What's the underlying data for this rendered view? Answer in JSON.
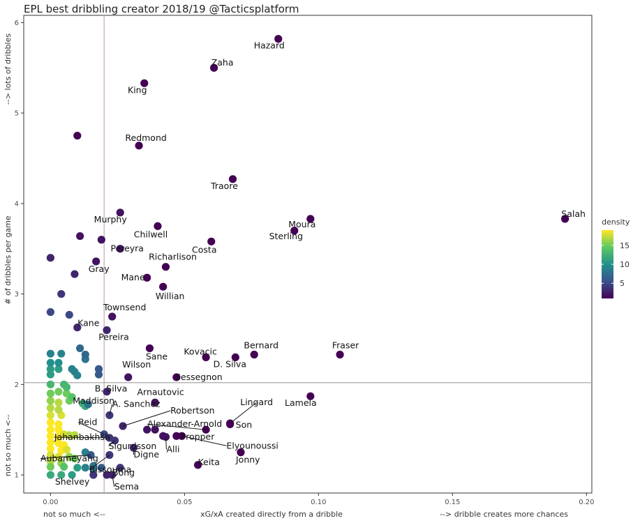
{
  "chart_data": {
    "type": "scatter",
    "title": "EPL best dribbling creator 2018/19 @Tacticsplatform",
    "xlabel_left": "not so much <--",
    "xlabel_center": "xG/xA created directly from a dribble",
    "xlabel_right": "--> dribble creates more chances",
    "ylabel_bottom": "not so much <--",
    "ylabel_center": "# of dribbles per game",
    "ylabel_top": "--> lots of dribbles",
    "xlim": [
      -0.01,
      0.202
    ],
    "ylim": [
      0.8,
      6.08
    ],
    "x_ticks": [
      0.0,
      0.05,
      0.1,
      0.15,
      0.2
    ],
    "x_tick_labels": [
      "0.00",
      "0.05",
      "0.10",
      "0.15",
      "0.20"
    ],
    "y_ticks": [
      1,
      2,
      3,
      4,
      5,
      6
    ],
    "y_tick_labels": [
      "1",
      "2",
      "3",
      "4",
      "5",
      "6"
    ],
    "reference_lines": {
      "x": 0.02,
      "y": 2.02
    },
    "grid": false,
    "legend": {
      "title": "density",
      "placement": "right",
      "ticks": [
        5,
        10,
        15
      ],
      "tick_labels": [
        "5",
        "10",
        "15"
      ],
      "range": [
        1,
        19
      ]
    },
    "colorscale": [
      "#440154",
      "#3b528b",
      "#21908d",
      "#5dc863",
      "#fde725"
    ],
    "labeled_points": [
      {
        "name": "Hazard",
        "x": 0.085,
        "y": 5.82,
        "density": 1
      },
      {
        "name": "Zaha",
        "x": 0.061,
        "y": 5.5,
        "density": 1
      },
      {
        "name": "King",
        "x": 0.035,
        "y": 5.33,
        "density": 1
      },
      {
        "name": "Redmond",
        "x": 0.033,
        "y": 4.64,
        "density": 1
      },
      {
        "name": "Traore",
        "x": 0.068,
        "y": 4.27,
        "density": 1
      },
      {
        "name": "Salah",
        "x": 0.192,
        "y": 3.83,
        "density": 1
      },
      {
        "name": "Moura",
        "x": 0.097,
        "y": 3.83,
        "density": 1
      },
      {
        "name": "Sterling",
        "x": 0.091,
        "y": 3.7,
        "density": 1
      },
      {
        "name": "Murphy",
        "x": 0.026,
        "y": 3.9,
        "density": 2
      },
      {
        "name": "Chilwell",
        "x": 0.04,
        "y": 3.75,
        "density": 1
      },
      {
        "name": "Pereyra",
        "x": 0.026,
        "y": 3.5,
        "density": 2
      },
      {
        "name": "Costa",
        "x": 0.06,
        "y": 3.58,
        "density": 1
      },
      {
        "name": "Richarlison",
        "x": 0.043,
        "y": 3.3,
        "density": 1
      },
      {
        "name": "Gray",
        "x": 0.017,
        "y": 3.36,
        "density": 2
      },
      {
        "name": "Mane",
        "x": 0.036,
        "y": 3.18,
        "density": 1
      },
      {
        "name": "Willian",
        "x": 0.042,
        "y": 3.08,
        "density": 1
      },
      {
        "name": "Townsend",
        "x": 0.023,
        "y": 2.75,
        "density": 2
      },
      {
        "name": "Kane",
        "x": 0.01,
        "y": 2.63,
        "density": 3
      },
      {
        "name": "Pereira",
        "x": 0.021,
        "y": 2.6,
        "density": 3
      },
      {
        "name": "Sane",
        "x": 0.037,
        "y": 2.4,
        "density": 1
      },
      {
        "name": "Kovacic",
        "x": 0.058,
        "y": 2.3,
        "density": 1
      },
      {
        "name": "Bernard",
        "x": 0.076,
        "y": 2.33,
        "density": 1
      },
      {
        "name": "D. Silva",
        "x": 0.069,
        "y": 2.3,
        "density": 1
      },
      {
        "name": "Fraser",
        "x": 0.108,
        "y": 2.33,
        "density": 1
      },
      {
        "name": "Wilson",
        "x": 0.029,
        "y": 2.08,
        "density": 2
      },
      {
        "name": "Sessegnon",
        "x": 0.047,
        "y": 2.08,
        "density": 1
      },
      {
        "name": "B. Silva",
        "x": 0.021,
        "y": 1.92,
        "density": 3
      },
      {
        "name": "Lamela",
        "x": 0.097,
        "y": 1.87,
        "density": 1
      },
      {
        "name": "Maddison",
        "x": 0.014,
        "y": 1.78,
        "density": 8
      },
      {
        "name": "Arnautovic",
        "x": 0.039,
        "y": 1.8,
        "density": 2
      },
      {
        "name": "Robertson",
        "x": 0.027,
        "y": 1.54,
        "density": 3
      },
      {
        "name": "A. Sanchez",
        "x": 0.022,
        "y": 1.66,
        "density": 4
      },
      {
        "name": "Lingard",
        "x": 0.067,
        "y": 1.57,
        "density": 1
      },
      {
        "name": "Reid",
        "x": 0.02,
        "y": 1.45,
        "density": 5
      },
      {
        "name": "Alexander-Arnold",
        "x": 0.058,
        "y": 1.5,
        "density": 1
      },
      {
        "name": "Son",
        "x": 0.067,
        "y": 1.56,
        "density": 1
      },
      {
        "name": "Jahanbakhsh",
        "x": 0.022,
        "y": 1.41,
        "density": 4
      },
      {
        "name": "Propper",
        "x": 0.047,
        "y": 1.43,
        "density": 1
      },
      {
        "name": "Sigurdsson",
        "x": 0.024,
        "y": 1.38,
        "density": 4
      },
      {
        "name": "Elyounoussi",
        "x": 0.049,
        "y": 1.43,
        "density": 1
      },
      {
        "name": "Aubameyang",
        "x": 0.015,
        "y": 1.22,
        "density": 6
      },
      {
        "name": "Digne",
        "x": 0.031,
        "y": 1.3,
        "density": 3
      },
      {
        "name": "Alli",
        "x": 0.043,
        "y": 1.42,
        "density": 2
      },
      {
        "name": "Bissouma",
        "x": 0.022,
        "y": 1.22,
        "density": 4
      },
      {
        "name": "Keita",
        "x": 0.055,
        "y": 1.11,
        "density": 1
      },
      {
        "name": "Jonny",
        "x": 0.071,
        "y": 1.25,
        "density": 1
      },
      {
        "name": "Bong",
        "x": 0.021,
        "y": 1.0,
        "density": 3
      },
      {
        "name": "Shelvey",
        "x": 0.016,
        "y": 1.0,
        "density": 4
      },
      {
        "name": "Sema",
        "x": 0.023,
        "y": 1.0,
        "density": 3
      }
    ],
    "other_points": [
      {
        "x": 0.01,
        "y": 4.75,
        "density": 1
      },
      {
        "x": 0.011,
        "y": 3.64,
        "density": 2
      },
      {
        "x": 0.019,
        "y": 3.6,
        "density": 2
      },
      {
        "x": 0.0,
        "y": 3.4,
        "density": 3
      },
      {
        "x": 0.009,
        "y": 3.22,
        "density": 3
      },
      {
        "x": 0.004,
        "y": 3.0,
        "density": 4
      },
      {
        "x": 0.0,
        "y": 2.8,
        "density": 5
      },
      {
        "x": 0.007,
        "y": 2.77,
        "density": 5
      },
      {
        "x": 0.0,
        "y": 2.34,
        "density": 9
      },
      {
        "x": 0.004,
        "y": 2.34,
        "density": 9
      },
      {
        "x": 0.0,
        "y": 2.24,
        "density": 10
      },
      {
        "x": 0.003,
        "y": 2.24,
        "density": 10
      },
      {
        "x": 0.0,
        "y": 2.17,
        "density": 11
      },
      {
        "x": 0.003,
        "y": 2.17,
        "density": 11
      },
      {
        "x": 0.0,
        "y": 2.11,
        "density": 11
      },
      {
        "x": 0.011,
        "y": 2.4,
        "density": 7
      },
      {
        "x": 0.013,
        "y": 2.33,
        "density": 7
      },
      {
        "x": 0.013,
        "y": 2.28,
        "density": 8
      },
      {
        "x": 0.008,
        "y": 2.17,
        "density": 9
      },
      {
        "x": 0.009,
        "y": 2.14,
        "density": 9
      },
      {
        "x": 0.01,
        "y": 2.1,
        "density": 9
      },
      {
        "x": 0.018,
        "y": 2.17,
        "density": 6
      },
      {
        "x": 0.018,
        "y": 2.11,
        "density": 6
      },
      {
        "x": 0.0,
        "y": 2.0,
        "density": 13
      },
      {
        "x": 0.005,
        "y": 2.0,
        "density": 13
      },
      {
        "x": 0.006,
        "y": 1.97,
        "density": 13
      },
      {
        "x": 0.0,
        "y": 1.9,
        "density": 15
      },
      {
        "x": 0.003,
        "y": 1.92,
        "density": 15
      },
      {
        "x": 0.006,
        "y": 1.9,
        "density": 15
      },
      {
        "x": 0.008,
        "y": 1.86,
        "density": 14
      },
      {
        "x": 0.0,
        "y": 1.82,
        "density": 16
      },
      {
        "x": 0.003,
        "y": 1.8,
        "density": 17
      },
      {
        "x": 0.007,
        "y": 1.82,
        "density": 15
      },
      {
        "x": 0.0,
        "y": 1.74,
        "density": 17
      },
      {
        "x": 0.003,
        "y": 1.72,
        "density": 17
      },
      {
        "x": 0.012,
        "y": 1.79,
        "density": 12
      },
      {
        "x": 0.013,
        "y": 1.76,
        "density": 12
      },
      {
        "x": 0.0,
        "y": 1.66,
        "density": 18
      },
      {
        "x": 0.004,
        "y": 1.66,
        "density": 18
      },
      {
        "x": 0.0,
        "y": 1.58,
        "density": 19
      },
      {
        "x": 0.003,
        "y": 1.56,
        "density": 19
      },
      {
        "x": 0.0,
        "y": 1.5,
        "density": 19
      },
      {
        "x": 0.003,
        "y": 1.5,
        "density": 19
      },
      {
        "x": 0.007,
        "y": 1.44,
        "density": 17
      },
      {
        "x": 0.009,
        "y": 1.44,
        "density": 17
      },
      {
        "x": 0.0,
        "y": 1.43,
        "density": 19
      },
      {
        "x": 0.003,
        "y": 1.42,
        "density": 19
      },
      {
        "x": 0.005,
        "y": 1.45,
        "density": 18
      },
      {
        "x": 0.0,
        "y": 1.36,
        "density": 19
      },
      {
        "x": 0.003,
        "y": 1.35,
        "density": 19
      },
      {
        "x": 0.005,
        "y": 1.33,
        "density": 19
      },
      {
        "x": 0.0,
        "y": 1.29,
        "density": 19
      },
      {
        "x": 0.004,
        "y": 1.27,
        "density": 19
      },
      {
        "x": 0.006,
        "y": 1.28,
        "density": 18
      },
      {
        "x": 0.0,
        "y": 1.22,
        "density": 18
      },
      {
        "x": 0.003,
        "y": 1.2,
        "density": 18
      },
      {
        "x": 0.007,
        "y": 1.2,
        "density": 16
      },
      {
        "x": 0.009,
        "y": 1.18,
        "density": 15
      },
      {
        "x": 0.0,
        "y": 1.15,
        "density": 17
      },
      {
        "x": 0.004,
        "y": 1.13,
        "density": 16
      },
      {
        "x": 0.0,
        "y": 1.09,
        "density": 15
      },
      {
        "x": 0.005,
        "y": 1.09,
        "density": 14
      },
      {
        "x": 0.01,
        "y": 1.08,
        "density": 11
      },
      {
        "x": 0.0,
        "y": 1.0,
        "density": 12
      },
      {
        "x": 0.004,
        "y": 1.0,
        "density": 12
      },
      {
        "x": 0.008,
        "y": 1.0,
        "density": 11
      },
      {
        "x": 0.013,
        "y": 1.25,
        "density": 9
      },
      {
        "x": 0.016,
        "y": 1.1,
        "density": 8
      },
      {
        "x": 0.016,
        "y": 1.07,
        "density": 8
      },
      {
        "x": 0.013,
        "y": 1.08,
        "density": 9
      },
      {
        "x": 0.019,
        "y": 1.08,
        "density": 6
      },
      {
        "x": 0.026,
        "y": 1.08,
        "density": 4
      },
      {
        "x": 0.036,
        "y": 1.5,
        "density": 2
      },
      {
        "x": 0.039,
        "y": 1.5,
        "density": 2
      },
      {
        "x": 0.042,
        "y": 1.43,
        "density": 2
      }
    ]
  }
}
